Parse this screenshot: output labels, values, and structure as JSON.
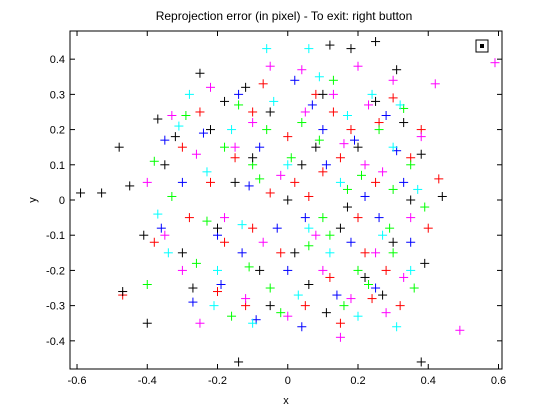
{
  "chart_data": {
    "type": "scatter",
    "title": "Reprojection error (in pixel) - To exit: right button",
    "xlabel": "x",
    "ylabel": "y",
    "xlim": [
      -0.62,
      0.61
    ],
    "ylim": [
      -0.48,
      0.48
    ],
    "xticks": [
      -0.6,
      -0.4,
      -0.2,
      0,
      0.2,
      0.4,
      0.6
    ],
    "xtick_labels": [
      "-0.6",
      "-0.4",
      "-0.2",
      "0",
      "0.2",
      "0.4",
      "0.6"
    ],
    "yticks": [
      -0.4,
      -0.3,
      -0.2,
      -0.1,
      0,
      0.1,
      0.2,
      0.3,
      0.4
    ],
    "ytick_labels": [
      "-0.4",
      "-0.3",
      "-0.2",
      "-0.1",
      "0",
      "0.1",
      "0.2",
      "0.3",
      "0.4"
    ],
    "grid": false,
    "marker": "+",
    "series": [
      {
        "color": "#ff0000",
        "points": [
          [
            0.02,
            0.05
          ],
          [
            -0.1,
            -0.08
          ],
          [
            0.15,
            0.12
          ],
          [
            0.4,
            -0.08
          ],
          [
            -0.38,
            -0.12
          ],
          [
            -0.47,
            -0.27
          ],
          [
            0.3,
            0.29
          ],
          [
            0.22,
            -0.15
          ],
          [
            -0.2,
            -0.26
          ],
          [
            0.08,
            0.3
          ],
          [
            0.12,
            -0.22
          ],
          [
            -0.28,
            -0.05
          ],
          [
            0.18,
            0.2
          ],
          [
            -0.05,
            0.02
          ],
          [
            0.25,
            0.05
          ],
          [
            0.43,
            0.06
          ],
          [
            -0.15,
            0.12
          ],
          [
            0.05,
            -0.3
          ],
          [
            0.32,
            -0.3
          ],
          [
            -0.1,
            0.25
          ],
          [
            0.2,
            -0.05
          ],
          [
            -0.22,
            0.05
          ],
          [
            0.1,
            0.08
          ],
          [
            -0.02,
            -0.15
          ],
          [
            0.28,
            -0.2
          ],
          [
            0.0,
            0.18
          ],
          [
            -0.3,
            0.15
          ],
          [
            0.15,
            -0.35
          ],
          [
            0.35,
            0.12
          ],
          [
            -0.12,
            -0.3
          ],
          [
            0.06,
            0.01
          ],
          [
            0.26,
            0.22
          ],
          [
            -0.18,
            -0.12
          ],
          [
            0.13,
            0.25
          ],
          [
            -0.07,
            0.33
          ],
          [
            0.24,
            -0.28
          ],
          [
            0.38,
            0.2
          ],
          [
            -0.25,
            0.25
          ]
        ]
      },
      {
        "color": "#00ff00",
        "points": [
          [
            -0.1,
            0.1
          ],
          [
            0.2,
            -0.2
          ],
          [
            0.35,
            0.1
          ],
          [
            -0.4,
            -0.24
          ],
          [
            0.13,
            0.34
          ],
          [
            -0.18,
            0.15
          ],
          [
            0.1,
            -0.05
          ],
          [
            0.3,
            -0.15
          ],
          [
            -0.05,
            -0.25
          ],
          [
            0.04,
            0.22
          ],
          [
            -0.33,
            0.01
          ],
          [
            0.26,
            0.2
          ],
          [
            0.16,
            -0.3
          ],
          [
            -0.26,
            -0.18
          ],
          [
            0.39,
            -0.02
          ],
          [
            -0.08,
            0.06
          ],
          [
            0.21,
            0.07
          ],
          [
            0.06,
            -0.13
          ],
          [
            -0.14,
            0.27
          ],
          [
            0.33,
            0.26
          ],
          [
            -0.38,
            0.11
          ],
          [
            0.17,
            0.03
          ],
          [
            -0.02,
            -0.32
          ],
          [
            -0.23,
            -0.06
          ],
          [
            0.29,
            -0.08
          ],
          [
            0.09,
            0.17
          ],
          [
            -0.11,
            -0.19
          ],
          [
            0.36,
            -0.25
          ],
          [
            0.01,
            0.12
          ],
          [
            -0.29,
            0.24
          ],
          [
            0.23,
            -0.24
          ],
          [
            -0.16,
            -0.33
          ],
          [
            0.12,
            -0.1
          ],
          [
            0.3,
            0.03
          ],
          [
            -0.06,
            0.2
          ]
        ]
      },
      {
        "color": "#0000ff",
        "points": [
          [
            0.05,
            -0.05
          ],
          [
            -0.2,
            -0.1
          ],
          [
            0.1,
            0.2
          ],
          [
            -0.3,
            0.05
          ],
          [
            0.25,
            -0.25
          ],
          [
            -0.14,
            0.3
          ],
          [
            0.31,
            0.14
          ],
          [
            -0.09,
            -0.34
          ],
          [
            0.18,
            -0.12
          ],
          [
            -0.36,
            -0.08
          ],
          [
            0.07,
            0.27
          ],
          [
            0.22,
            0.01
          ],
          [
            -0.03,
            -0.08
          ],
          [
            0.14,
            -0.27
          ],
          [
            -0.24,
            0.19
          ],
          [
            0.35,
            -0.12
          ],
          [
            -0.11,
            0.04
          ],
          [
            0.02,
            0.34
          ],
          [
            0.28,
            0.24
          ],
          [
            -0.19,
            -0.24
          ],
          [
            0.11,
            0.1
          ],
          [
            -0.27,
            -0.29
          ],
          [
            0.19,
            0.17
          ],
          [
            0.0,
            -0.2
          ],
          [
            -0.35,
            0.17
          ],
          [
            0.26,
            -0.05
          ],
          [
            -0.08,
            0.15
          ],
          [
            0.33,
            0.05
          ],
          [
            -0.13,
            -0.15
          ],
          [
            0.04,
            -0.36
          ]
        ]
      },
      {
        "color": "#00ffff",
        "points": [
          [
            -0.06,
            0.43
          ],
          [
            0.06,
            0.43
          ],
          [
            0.31,
            -0.36
          ],
          [
            -0.2,
            -0.2
          ],
          [
            0.15,
            0.05
          ],
          [
            -0.28,
            0.3
          ],
          [
            0.35,
            -0.2
          ],
          [
            0.0,
            0.1
          ],
          [
            -0.1,
            -0.35
          ],
          [
            0.24,
            0.3
          ],
          [
            -0.34,
            -0.15
          ],
          [
            0.12,
            -0.15
          ],
          [
            -0.16,
            0.2
          ],
          [
            0.3,
            0.15
          ],
          [
            0.03,
            -0.27
          ],
          [
            -0.23,
            0.08
          ],
          [
            0.2,
            -0.33
          ],
          [
            0.37,
            0.03
          ],
          [
            -0.04,
            0.28
          ],
          [
            0.27,
            -0.1
          ],
          [
            -0.31,
            0.21
          ],
          [
            0.09,
            0.35
          ],
          [
            -0.13,
            -0.07
          ],
          [
            0.17,
            0.24
          ],
          [
            -0.21,
            -0.3
          ],
          [
            0.32,
            0.27
          ],
          [
            0.06,
            -0.08
          ],
          [
            -0.37,
            -0.04
          ]
        ]
      },
      {
        "color": "#ff00ff",
        "points": [
          [
            0.59,
            0.39
          ],
          [
            0.42,
            0.33
          ],
          [
            0.49,
            -0.37
          ],
          [
            0.15,
            -0.39
          ],
          [
            -0.05,
            0.38
          ],
          [
            0.2,
            0.38
          ],
          [
            -0.25,
            -0.35
          ],
          [
            0.3,
            0.34
          ],
          [
            -0.4,
            0.05
          ],
          [
            0.1,
            -0.2
          ],
          [
            -0.15,
            0.15
          ],
          [
            0.25,
            -0.15
          ],
          [
            0.05,
            0.25
          ],
          [
            -0.3,
            -0.2
          ],
          [
            0.35,
            -0.05
          ],
          [
            -0.1,
            0.22
          ],
          [
            0.18,
            -0.28
          ],
          [
            -0.22,
            0.32
          ],
          [
            0.38,
            0.18
          ],
          [
            0.0,
            -0.33
          ],
          [
            -0.33,
            0.24
          ],
          [
            0.22,
            0.1
          ],
          [
            -0.07,
            -0.12
          ],
          [
            0.13,
            0.3
          ],
          [
            -0.18,
            -0.05
          ],
          [
            0.28,
            -0.32
          ],
          [
            -0.02,
            0.07
          ],
          [
            0.33,
            -0.22
          ],
          [
            -0.26,
            0.13
          ],
          [
            0.08,
            -0.1
          ],
          [
            0.23,
            0.27
          ],
          [
            -0.12,
            -0.28
          ],
          [
            0.16,
            0.16
          ],
          [
            -0.35,
            -0.1
          ],
          [
            0.04,
            0.37
          ],
          [
            0.27,
            0.08
          ]
        ]
      },
      {
        "color": "#000000",
        "points": [
          [
            -0.59,
            0.02
          ],
          [
            -0.53,
            0.02
          ],
          [
            -0.48,
            0.15
          ],
          [
            -0.45,
            0.04
          ],
          [
            -0.47,
            -0.26
          ],
          [
            -0.41,
            -0.1
          ],
          [
            -0.4,
            -0.35
          ],
          [
            -0.37,
            0.23
          ],
          [
            -0.14,
            -0.46
          ],
          [
            0.12,
            0.44
          ],
          [
            0.18,
            0.43
          ],
          [
            0.25,
            0.45
          ],
          [
            0.38,
            -0.46
          ],
          [
            0.44,
            0.01
          ],
          [
            0.38,
            0.13
          ],
          [
            0.11,
            -0.32
          ],
          [
            -0.25,
            0.36
          ],
          [
            -0.05,
            0.25
          ],
          [
            0.2,
            0.15
          ],
          [
            -0.3,
            -0.15
          ],
          [
            0.3,
            -0.12
          ],
          [
            0.0,
            0.0
          ],
          [
            -0.15,
            0.05
          ],
          [
            0.15,
            -0.08
          ],
          [
            -0.08,
            -0.2
          ],
          [
            0.08,
            0.15
          ],
          [
            -0.22,
            0.2
          ],
          [
            0.25,
            0.28
          ],
          [
            -0.35,
            0.1
          ],
          [
            0.33,
            0.22
          ],
          [
            0.02,
            -0.15
          ],
          [
            -0.12,
            0.32
          ],
          [
            0.22,
            -0.22
          ],
          [
            -0.27,
            -0.25
          ],
          [
            0.1,
            0.3
          ],
          [
            -0.2,
            -0.08
          ],
          [
            0.35,
            0.0
          ],
          [
            -0.05,
            -0.3
          ],
          [
            0.17,
            -0.02
          ],
          [
            0.04,
            0.1
          ],
          [
            -0.1,
            0.12
          ],
          [
            0.27,
            -0.27
          ],
          [
            0.39,
            -0.18
          ],
          [
            -0.32,
            0.18
          ],
          [
            0.06,
            -0.24
          ],
          [
            0.31,
            0.37
          ],
          [
            -0.18,
            0.28
          ]
        ]
      }
    ]
  }
}
